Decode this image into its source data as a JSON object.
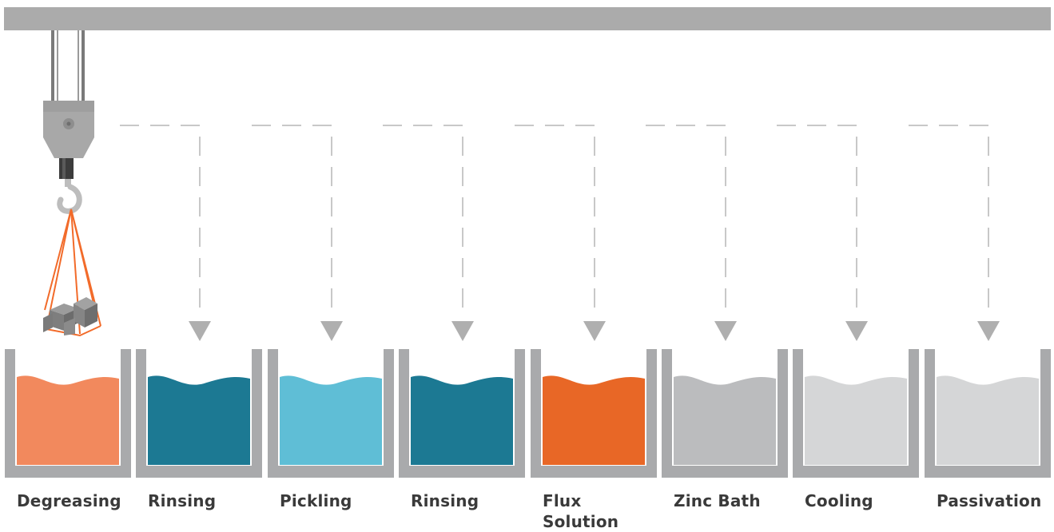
{
  "diagram": {
    "tanks": [
      {
        "label_lines": [
          "Degreasing"
        ],
        "liquid_color": "#F2895D",
        "arrow": false
      },
      {
        "label_lines": [
          "Rinsing"
        ],
        "liquid_color": "#1C7993",
        "arrow": true
      },
      {
        "label_lines": [
          "Pickling"
        ],
        "liquid_color": "#5FBED6",
        "arrow": true
      },
      {
        "label_lines": [
          "Rinsing"
        ],
        "liquid_color": "#1C7993",
        "arrow": true
      },
      {
        "label_lines": [
          "Flux",
          "Solution"
        ],
        "liquid_color": "#E86726",
        "arrow": true
      },
      {
        "label_lines": [
          "Zinc Bath"
        ],
        "liquid_color": "#BBBCBE",
        "arrow": true
      },
      {
        "label_lines": [
          "Cooling"
        ],
        "liquid_color": "#D5D6D7",
        "arrow": true
      },
      {
        "label_lines": [
          "Passivation"
        ],
        "liquid_color": "#D5D6D7",
        "arrow": true
      }
    ],
    "colors": {
      "rail": "#ABABAB",
      "tank_wall": "#A9AAAC",
      "dashed_path": "#C8C8C8",
      "arrow": "#AFAFAF",
      "crane_body": "#A8A8A8",
      "hook": "#BDBDBD",
      "sling": "#F26B2A",
      "load": "#8A8A8A",
      "label_text": "#3A3A3A"
    },
    "icons": {
      "crane": "overhead-crane-trolley-icon",
      "hook": "crane-hook-icon",
      "load": "steel-parts-load-icon",
      "arrow": "down-triangle-arrow-icon"
    }
  }
}
